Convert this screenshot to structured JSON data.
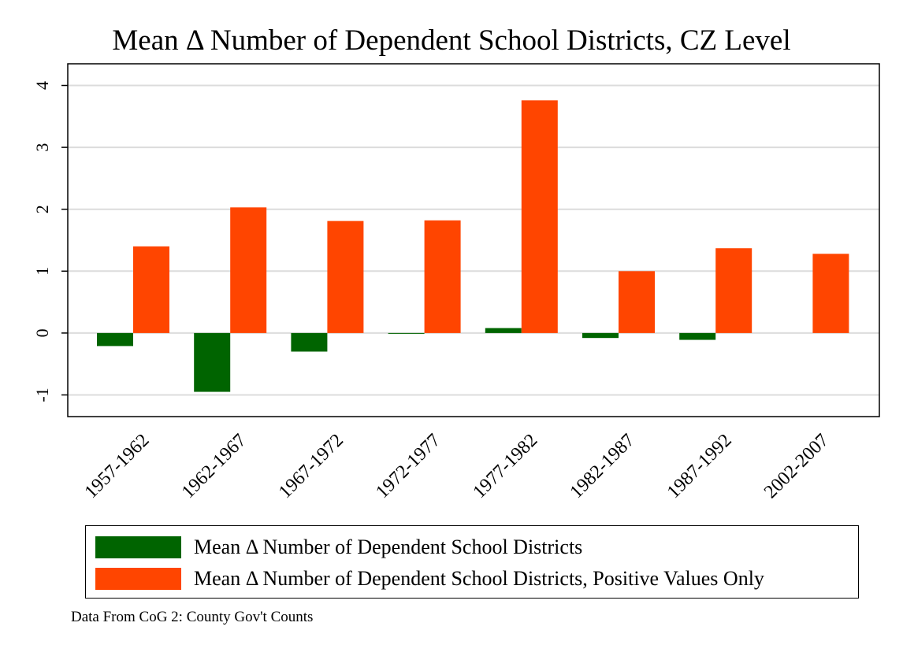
{
  "chart_data": {
    "type": "bar",
    "title": "Mean Δ Number of Dependent School Districts, CZ Level",
    "xlabel": "",
    "ylabel": "",
    "categories": [
      "1957-1962",
      "1962-1967",
      "1967-1972",
      "1972-1977",
      "1977-1982",
      "1982-1987",
      "1987-1992",
      "2002-2007"
    ],
    "series": [
      {
        "name": "Mean Δ Number of Dependent School Districts",
        "color": "#006400",
        "values": [
          -0.21,
          -0.95,
          -0.3,
          -0.01,
          0.08,
          -0.08,
          -0.11,
          0.0
        ]
      },
      {
        "name": "Mean Δ Number of Dependent School Districts, Positive Values Only",
        "color": "#FF4500",
        "values": [
          1.4,
          2.03,
          1.81,
          1.82,
          3.76,
          1.0,
          1.37,
          1.28
        ]
      }
    ],
    "ylim": [
      -1.35,
      4.35
    ],
    "yticks": [
      -1,
      0,
      1,
      2,
      3,
      4
    ],
    "grid": true,
    "legend_position": "bottom",
    "note": "Data From CoG 2: County Gov't Counts"
  }
}
